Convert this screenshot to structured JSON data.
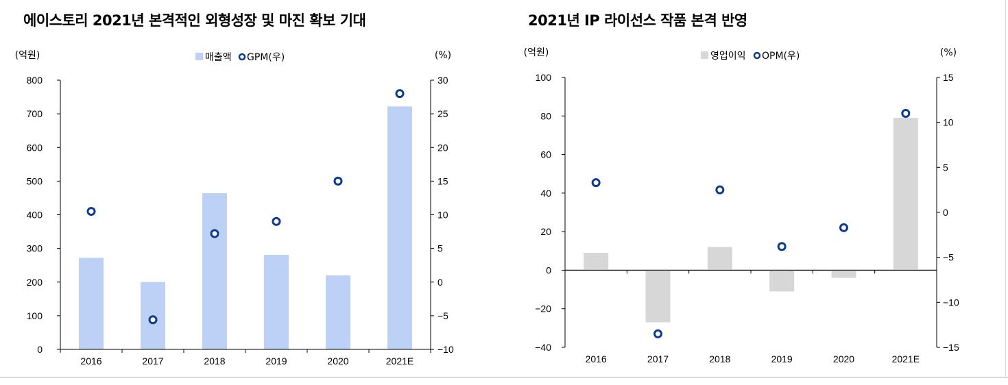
{
  "chart_data": [
    {
      "type": "bar",
      "title": "에이스토리 2021년 본격적인 외형성장 및 마진 확보 기대",
      "categories": [
        "2016",
        "2017",
        "2018",
        "2019",
        "2020",
        "2021E"
      ],
      "y_left_label": "(억원)",
      "y_right_label": "(%)",
      "ylim_left": [
        0,
        800
      ],
      "ylim_right": [
        -10,
        30
      ],
      "yticks_left": [
        "800",
        "700",
        "600",
        "500",
        "400",
        "300",
        "200",
        "100",
        "0"
      ],
      "yticks_right": [
        "30",
        "25",
        "20",
        "15",
        "10",
        "5",
        "0",
        "−5",
        "−10"
      ],
      "legend_position": "top-center",
      "series": [
        {
          "name": "매출액",
          "kind": "bar",
          "axis": "left",
          "color": "#bcd1f5",
          "values": [
            272,
            200,
            464,
            281,
            220,
            722
          ]
        },
        {
          "name": "GPM(우)",
          "kind": "marker",
          "axis": "right",
          "color": "#0c3a91",
          "values": [
            10.5,
            -5.6,
            7.2,
            9,
            15,
            28
          ]
        }
      ]
    },
    {
      "type": "bar",
      "title": "2021년 IP 라이선스 작품 본격 반영",
      "categories": [
        "2016",
        "2017",
        "2018",
        "2019",
        "2020",
        "2021E"
      ],
      "y_left_label": "(억원)",
      "y_right_label": "(%)",
      "ylim_left": [
        -40,
        100
      ],
      "ylim_right": [
        -15,
        15
      ],
      "yticks_left": [
        "100",
        "80",
        "60",
        "40",
        "20",
        "0",
        "−20",
        "−40"
      ],
      "yticks_right": [
        "15",
        "10",
        "5",
        "0",
        "−5",
        "−10",
        "−15"
      ],
      "legend_position": "top-center",
      "series": [
        {
          "name": "영업이익",
          "kind": "bar",
          "axis": "left",
          "color": "#d7d7d7",
          "values": [
            9,
            -27,
            12,
            -11,
            -4,
            79
          ]
        },
        {
          "name": "OPM(우)",
          "kind": "marker",
          "axis": "right",
          "color": "#0c3a91",
          "values": [
            3.3,
            -13.5,
            2.5,
            -3.8,
            -1.7,
            11
          ]
        }
      ]
    }
  ]
}
